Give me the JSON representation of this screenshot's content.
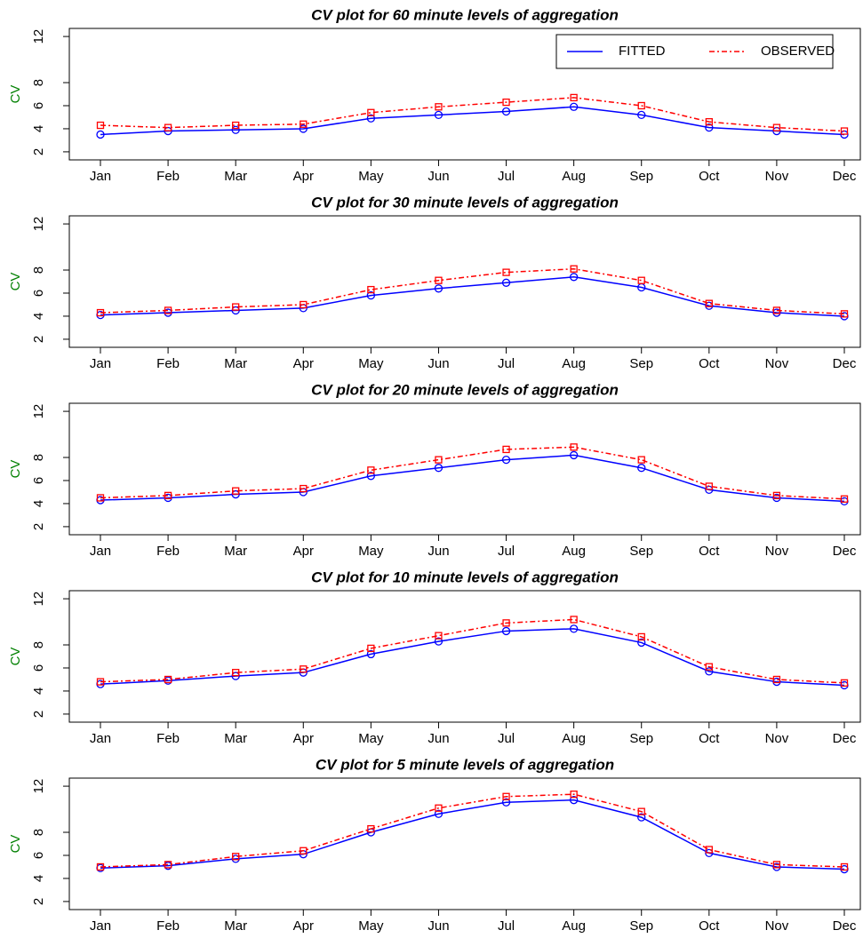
{
  "chart_data": [
    {
      "type": "line",
      "title": "CV plot for 60 minute levels of aggregation",
      "y_label": "CV",
      "categories": [
        "Jan",
        "Feb",
        "Mar",
        "Apr",
        "May",
        "Jun",
        "Jul",
        "Aug",
        "Sep",
        "Oct",
        "Nov",
        "Dec"
      ],
      "ylim": [
        1.3,
        12.7
      ],
      "yticks": [
        2,
        4,
        6,
        8,
        12
      ],
      "legend": "top-right",
      "series": [
        {
          "name": "FITTED",
          "color": "#0000ff",
          "linestyle": "solid",
          "marker": "circle",
          "values": [
            3.5,
            3.8,
            3.9,
            4.0,
            4.9,
            5.2,
            5.5,
            5.9,
            5.2,
            4.1,
            3.8,
            3.5
          ]
        },
        {
          "name": "OBSERVED",
          "color": "#ff0000",
          "linestyle": "dashdot",
          "marker": "square",
          "values": [
            4.3,
            4.1,
            4.3,
            4.4,
            5.4,
            5.9,
            6.3,
            6.7,
            6.0,
            4.6,
            4.1,
            3.8
          ]
        }
      ]
    },
    {
      "type": "line",
      "title": "CV plot for 30 minute levels of aggregation",
      "y_label": "CV",
      "categories": [
        "Jan",
        "Feb",
        "Mar",
        "Apr",
        "May",
        "Jun",
        "Jul",
        "Aug",
        "Sep",
        "Oct",
        "Nov",
        "Dec"
      ],
      "ylim": [
        1.3,
        12.7
      ],
      "yticks": [
        2,
        4,
        6,
        8,
        12
      ],
      "series": [
        {
          "color": "#0000ff",
          "linestyle": "solid",
          "marker": "circle",
          "values": [
            4.1,
            4.3,
            4.5,
            4.7,
            5.8,
            6.4,
            6.9,
            7.4,
            6.5,
            4.9,
            4.3,
            4.0
          ]
        },
        {
          "color": "#ff0000",
          "linestyle": "dashdot",
          "marker": "square",
          "values": [
            4.3,
            4.5,
            4.8,
            5.0,
            6.3,
            7.1,
            7.8,
            8.1,
            7.1,
            5.1,
            4.5,
            4.2
          ]
        }
      ]
    },
    {
      "type": "line",
      "title": "CV plot for 20 minute levels of aggregation",
      "y_label": "CV",
      "categories": [
        "Jan",
        "Feb",
        "Mar",
        "Apr",
        "May",
        "Jun",
        "Jul",
        "Aug",
        "Sep",
        "Oct",
        "Nov",
        "Dec"
      ],
      "ylim": [
        1.3,
        12.7
      ],
      "yticks": [
        2,
        4,
        6,
        8,
        12
      ],
      "series": [
        {
          "color": "#0000ff",
          "linestyle": "solid",
          "marker": "circle",
          "values": [
            4.3,
            4.5,
            4.8,
            5.0,
            6.4,
            7.1,
            7.8,
            8.2,
            7.1,
            5.2,
            4.5,
            4.2
          ]
        },
        {
          "color": "#ff0000",
          "linestyle": "dashdot",
          "marker": "square",
          "values": [
            4.5,
            4.7,
            5.1,
            5.3,
            6.9,
            7.8,
            8.7,
            8.9,
            7.8,
            5.5,
            4.7,
            4.4
          ]
        }
      ]
    },
    {
      "type": "line",
      "title": "CV plot for 10 minute levels of aggregation",
      "y_label": "CV",
      "categories": [
        "Jan",
        "Feb",
        "Mar",
        "Apr",
        "May",
        "Jun",
        "Jul",
        "Aug",
        "Sep",
        "Oct",
        "Nov",
        "Dec"
      ],
      "ylim": [
        1.3,
        12.7
      ],
      "yticks": [
        2,
        4,
        6,
        8,
        12
      ],
      "series": [
        {
          "color": "#0000ff",
          "linestyle": "solid",
          "marker": "circle",
          "values": [
            4.6,
            4.9,
            5.3,
            5.6,
            7.2,
            8.3,
            9.2,
            9.4,
            8.2,
            5.7,
            4.8,
            4.5
          ]
        },
        {
          "color": "#ff0000",
          "linestyle": "dashdot",
          "marker": "square",
          "values": [
            4.8,
            5.0,
            5.6,
            5.9,
            7.7,
            8.8,
            9.9,
            10.2,
            8.7,
            6.1,
            5.0,
            4.7
          ]
        }
      ]
    },
    {
      "type": "line",
      "title": "CV plot for 5 minute levels of aggregation",
      "y_label": "CV",
      "categories": [
        "Jan",
        "Feb",
        "Mar",
        "Apr",
        "May",
        "Jun",
        "Jul",
        "Aug",
        "Sep",
        "Oct",
        "Nov",
        "Dec"
      ],
      "ylim": [
        1.3,
        12.7
      ],
      "yticks": [
        2,
        4,
        6,
        8,
        12
      ],
      "series": [
        {
          "color": "#0000ff",
          "linestyle": "solid",
          "marker": "circle",
          "values": [
            4.9,
            5.1,
            5.7,
            6.1,
            8.0,
            9.6,
            10.6,
            10.8,
            9.3,
            6.2,
            5.0,
            4.8
          ]
        },
        {
          "color": "#ff0000",
          "linestyle": "dashdot",
          "marker": "square",
          "values": [
            5.0,
            5.2,
            5.9,
            6.4,
            8.3,
            10.1,
            11.1,
            11.3,
            9.8,
            6.5,
            5.2,
            5.0
          ]
        }
      ]
    }
  ]
}
